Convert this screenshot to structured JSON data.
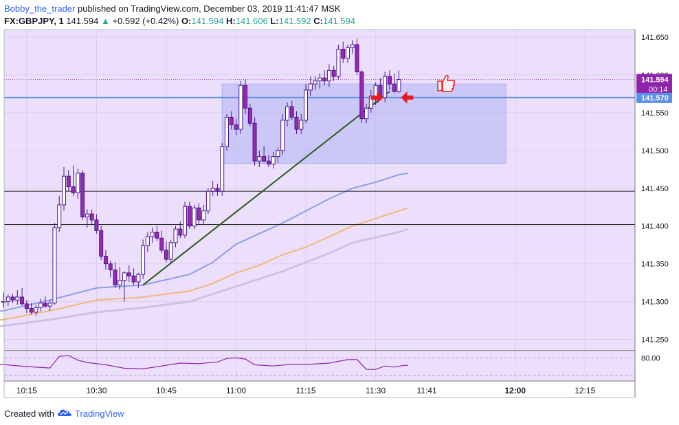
{
  "header": {
    "author": "Bobby_the_trader",
    "published_text": "published on TradingView.com, December 03, 2019 11:41:47 MSK",
    "symbol": "FX:GBPJPY, 1",
    "last": "141.594",
    "change": "+0.592 (+0.42%)",
    "o_label": "O:",
    "o_value": "141.594",
    "h_label": "H:",
    "h_value": "141.606",
    "l_label": "L:",
    "l_value": "141.592",
    "c_label": "C:",
    "c_value": "141.594"
  },
  "footer": {
    "created_with": "Created with",
    "brand": "TradingView"
  },
  "colors": {
    "bg": "#ecdffb",
    "candle_up": "#ffffff",
    "candle_down": "#9c27b0",
    "wick": "#4a148c",
    "ma_fast": "#8c9eea",
    "ma_mid": "#f2b77a",
    "ma_slow": "#cfc0e6",
    "hline_blue": "#5b8fe8",
    "box": "#b0b4f6",
    "trendline": "#2e5a1c",
    "arrow": "#e51c23"
  },
  "chart_data": {
    "type": "candlestick",
    "symbol": "FX:GBPJPY",
    "interval": "1",
    "y_range": [
      141.235,
      141.66
    ],
    "y_ticks": [
      "141.650",
      "141.600",
      "141.550",
      "141.500",
      "141.450",
      "141.400",
      "141.350",
      "141.300",
      "141.250"
    ],
    "x_ticks": [
      "10:15",
      "10:30",
      "10:45",
      "11:00",
      "11:15",
      "11:30",
      "11:41",
      "12:00",
      "12:15"
    ],
    "x_tick_minutes": [
      15,
      30,
      45,
      60,
      75,
      90,
      101,
      120,
      135
    ],
    "candles": [
      [
        10,
        141.3,
        141.312,
        141.292,
        141.3
      ],
      [
        11,
        141.3,
        141.31,
        141.294,
        141.306
      ],
      [
        12,
        141.306,
        141.31,
        141.298,
        141.302
      ],
      [
        13,
        141.302,
        141.315,
        141.296,
        141.306
      ],
      [
        14,
        141.306,
        141.318,
        141.295,
        141.297
      ],
      [
        15,
        141.297,
        141.302,
        141.285,
        141.291
      ],
      [
        16,
        141.291,
        141.298,
        141.283,
        141.286
      ],
      [
        17,
        141.286,
        141.296,
        141.281,
        141.292
      ],
      [
        18,
        141.292,
        141.304,
        141.287,
        141.298
      ],
      [
        19,
        141.298,
        141.307,
        141.292,
        141.294
      ],
      [
        20,
        141.294,
        141.302,
        141.288,
        141.298
      ],
      [
        21,
        141.298,
        141.404,
        141.296,
        141.398
      ],
      [
        22,
        141.398,
        141.44,
        141.392,
        141.428
      ],
      [
        23,
        141.428,
        141.478,
        141.42,
        141.466
      ],
      [
        24,
        141.466,
        141.474,
        141.446,
        141.452
      ],
      [
        25,
        141.452,
        141.48,
        141.44,
        141.444
      ],
      [
        26,
        141.444,
        141.476,
        141.436,
        141.47
      ],
      [
        27,
        141.47,
        141.474,
        141.408,
        141.412
      ],
      [
        28,
        141.412,
        141.422,
        141.398,
        141.416
      ],
      [
        29,
        141.416,
        141.422,
        141.402,
        141.408
      ],
      [
        30,
        141.408,
        141.416,
        141.39,
        141.394
      ],
      [
        31,
        141.394,
        141.4,
        141.355,
        141.36
      ],
      [
        32,
        141.36,
        141.368,
        141.342,
        141.35
      ],
      [
        33,
        141.35,
        141.354,
        141.332,
        141.342
      ],
      [
        34,
        141.342,
        141.352,
        141.318,
        141.322
      ],
      [
        35,
        141.322,
        141.346,
        141.316,
        141.328
      ],
      [
        36,
        141.328,
        141.34,
        141.3,
        141.338
      ],
      [
        37,
        141.338,
        141.348,
        141.326,
        141.334
      ],
      [
        38,
        141.334,
        141.344,
        141.322,
        141.326
      ],
      [
        39,
        141.326,
        141.338,
        141.318,
        141.336
      ],
      [
        40,
        141.336,
        141.382,
        141.33,
        141.374
      ],
      [
        41,
        141.374,
        141.392,
        141.366,
        141.386
      ],
      [
        42,
        141.386,
        141.398,
        141.378,
        141.392
      ],
      [
        43,
        141.392,
        141.4,
        141.38,
        141.384
      ],
      [
        44,
        141.384,
        141.394,
        141.364,
        141.368
      ],
      [
        45,
        141.368,
        141.38,
        141.352,
        141.356
      ],
      [
        46,
        141.356,
        141.382,
        141.35,
        141.378
      ],
      [
        47,
        141.378,
        141.4,
        141.372,
        141.396
      ],
      [
        48,
        141.396,
        141.406,
        141.384,
        141.388
      ],
      [
        49,
        141.388,
        141.432,
        141.384,
        141.426
      ],
      [
        50,
        141.426,
        141.432,
        141.396,
        141.4
      ],
      [
        51,
        141.4,
        141.428,
        141.396,
        141.424
      ],
      [
        52,
        141.424,
        141.43,
        141.402,
        141.408
      ],
      [
        53,
        141.408,
        141.428,
        141.402,
        141.42
      ],
      [
        54,
        141.42,
        141.45,
        141.416,
        141.446
      ],
      [
        55,
        141.446,
        141.46,
        141.44,
        141.45
      ],
      [
        56,
        141.45,
        141.456,
        141.44,
        141.446
      ],
      [
        57,
        141.446,
        141.51,
        141.44,
        141.505
      ],
      [
        58,
        141.505,
        141.548,
        141.5,
        141.544
      ],
      [
        59,
        141.544,
        141.552,
        141.528,
        141.534
      ],
      [
        60,
        141.534,
        141.542,
        141.52,
        141.528
      ],
      [
        61,
        141.528,
        141.592,
        141.522,
        141.586
      ],
      [
        62,
        141.586,
        141.594,
        141.548,
        141.556
      ],
      [
        63,
        141.556,
        141.562,
        141.532,
        141.536
      ],
      [
        64,
        141.536,
        141.544,
        141.48,
        141.486
      ],
      [
        65,
        141.486,
        141.5,
        141.478,
        141.492
      ],
      [
        66,
        141.492,
        141.506,
        141.484,
        141.486
      ],
      [
        67,
        141.486,
        141.494,
        141.478,
        141.482
      ],
      [
        68,
        141.482,
        141.498,
        141.476,
        141.492
      ],
      [
        69,
        141.492,
        141.504,
        141.484,
        141.5
      ],
      [
        70,
        141.5,
        141.548,
        141.494,
        141.54
      ],
      [
        71,
        141.54,
        141.564,
        141.532,
        141.558
      ],
      [
        72,
        141.558,
        141.566,
        141.54,
        141.544
      ],
      [
        73,
        141.544,
        141.552,
        141.522,
        141.528
      ],
      [
        74,
        141.528,
        141.548,
        141.522,
        141.54
      ],
      [
        75,
        141.54,
        141.588,
        141.536,
        141.58
      ],
      [
        76,
        141.58,
        141.598,
        141.572,
        141.588
      ],
      [
        77,
        141.588,
        141.598,
        141.58,
        141.592
      ],
      [
        78,
        141.592,
        141.602,
        141.582,
        141.596
      ],
      [
        79,
        141.596,
        141.606,
        141.586,
        141.592
      ],
      [
        80,
        141.592,
        141.614,
        141.584,
        141.606
      ],
      [
        81,
        141.606,
        141.612,
        141.592,
        141.598
      ],
      [
        82,
        141.598,
        141.64,
        141.594,
        141.634
      ],
      [
        83,
        141.634,
        141.644,
        141.616,
        141.622
      ],
      [
        84,
        141.622,
        141.64,
        141.616,
        141.636
      ],
      [
        85,
        141.636,
        141.646,
        141.628,
        141.64
      ],
      [
        86,
        141.64,
        141.648,
        141.6,
        141.604
      ],
      [
        87,
        141.604,
        141.606,
        141.536,
        141.542
      ],
      [
        88,
        141.542,
        141.562,
        141.536,
        141.556
      ],
      [
        89,
        141.556,
        141.58,
        141.55,
        141.572
      ],
      [
        90,
        141.572,
        141.59,
        141.56,
        141.586
      ],
      [
        91,
        141.586,
        141.596,
        141.566,
        141.57
      ],
      [
        92,
        141.57,
        141.604,
        141.564,
        141.598
      ],
      [
        93,
        141.598,
        141.606,
        141.58,
        141.588
      ],
      [
        94,
        141.588,
        141.602,
        141.576,
        141.578
      ],
      [
        95,
        141.578,
        141.606,
        141.576,
        141.594
      ]
    ],
    "moving_averages": [
      {
        "color": "#8c9eea",
        "points": [
          [
            0,
            141.282
          ],
          [
            10,
            141.288
          ],
          [
            20,
            141.302
          ],
          [
            30,
            141.318
          ],
          [
            40,
            141.322
          ],
          [
            50,
            141.336
          ],
          [
            55,
            141.352
          ],
          [
            60,
            141.376
          ],
          [
            65,
            141.39
          ],
          [
            70,
            141.404
          ],
          [
            75,
            141.42
          ],
          [
            80,
            141.436
          ],
          [
            85,
            141.45
          ],
          [
            90,
            141.458
          ],
          [
            95,
            141.468
          ],
          [
            97,
            141.47
          ]
        ]
      },
      {
        "color": "#f2b77a",
        "points": [
          [
            0,
            141.272
          ],
          [
            10,
            141.276
          ],
          [
            20,
            141.288
          ],
          [
            30,
            141.302
          ],
          [
            40,
            141.306
          ],
          [
            50,
            141.314
          ],
          [
            55,
            141.324
          ],
          [
            60,
            141.338
          ],
          [
            65,
            141.348
          ],
          [
            70,
            141.362
          ],
          [
            75,
            141.372
          ],
          [
            80,
            141.386
          ],
          [
            85,
            141.4
          ],
          [
            90,
            141.41
          ],
          [
            95,
            141.42
          ],
          [
            97,
            141.424
          ]
        ]
      },
      {
        "color": "#cfc0e6",
        "points": [
          [
            0,
            141.265
          ],
          [
            10,
            141.268
          ],
          [
            20,
            141.276
          ],
          [
            30,
            141.286
          ],
          [
            40,
            141.292
          ],
          [
            50,
            141.3
          ],
          [
            55,
            141.31
          ],
          [
            60,
            141.32
          ],
          [
            65,
            141.33
          ],
          [
            70,
            141.34
          ],
          [
            75,
            141.352
          ],
          [
            80,
            141.364
          ],
          [
            85,
            141.378
          ],
          [
            90,
            141.385
          ],
          [
            95,
            141.392
          ],
          [
            97,
            141.396
          ]
        ]
      }
    ],
    "horizontal_lines": [
      {
        "price": 141.57,
        "label": "141.570",
        "color": "#5b8fe8"
      },
      {
        "price": 141.446,
        "color": "#222222"
      },
      {
        "price": 141.402,
        "color": "#222222"
      }
    ],
    "price_labels": [
      {
        "price": 141.594,
        "label": "141.594",
        "timer": "00:14"
      },
      {
        "price": 141.57,
        "label": "141.570"
      }
    ],
    "last_price": 141.594,
    "rectangle": {
      "t0": 57,
      "t1": 118,
      "p_top": 141.588,
      "p_bottom": 141.483
    },
    "trendline": [
      [
        40,
        141.322
      ],
      [
        93,
        141.578
      ]
    ],
    "oscillator": {
      "level_label": "80.00",
      "y_range": [
        0,
        100
      ],
      "levels": [
        80,
        20
      ],
      "points": [
        [
          0,
          58
        ],
        [
          5,
          54
        ],
        [
          10,
          57
        ],
        [
          15,
          50
        ],
        [
          20,
          45
        ],
        [
          22,
          85
        ],
        [
          24,
          88
        ],
        [
          26,
          72
        ],
        [
          28,
          64
        ],
        [
          32,
          56
        ],
        [
          36,
          44
        ],
        [
          40,
          42
        ],
        [
          44,
          52
        ],
        [
          48,
          62
        ],
        [
          52,
          60
        ],
        [
          56,
          66
        ],
        [
          58,
          78
        ],
        [
          60,
          80
        ],
        [
          62,
          76
        ],
        [
          64,
          56
        ],
        [
          68,
          52
        ],
        [
          72,
          58
        ],
        [
          76,
          58
        ],
        [
          80,
          62
        ],
        [
          84,
          74
        ],
        [
          86,
          74
        ],
        [
          88,
          40
        ],
        [
          90,
          40
        ],
        [
          92,
          52
        ],
        [
          94,
          48
        ],
        [
          96,
          54
        ],
        [
          97,
          54
        ]
      ]
    }
  }
}
